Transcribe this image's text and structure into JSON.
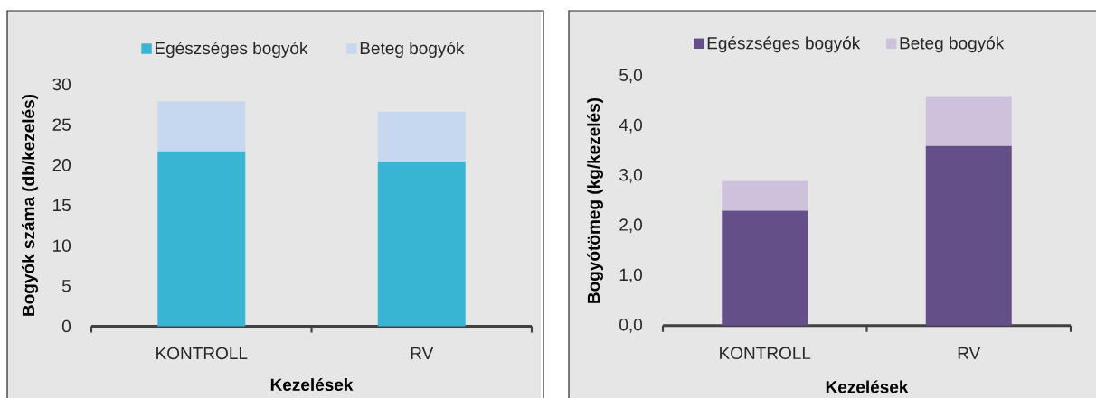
{
  "chart_data": [
    {
      "type": "bar",
      "stacked": true,
      "categories": [
        "KONTROLL",
        "RV"
      ],
      "series": [
        {
          "name": "Egészséges bogyók",
          "color": "#39b5d4",
          "values": [
            21.7,
            20.4
          ]
        },
        {
          "name": "Beteg bogyók",
          "color": "#c6d8ef",
          "values": [
            6.2,
            6.2
          ]
        }
      ],
      "xlabel": "Kezelések",
      "ylabel": "Bogyók száma (db/kezelés)",
      "ylim": [
        0,
        30
      ],
      "yticks": [
        0,
        5,
        10,
        15,
        20,
        25,
        30
      ],
      "legend": "top"
    },
    {
      "type": "bar",
      "stacked": true,
      "categories": [
        "KONTROLL",
        "RV"
      ],
      "series": [
        {
          "name": "Egészséges bogyók",
          "color": "#654f88",
          "values": [
            2.3,
            3.6
          ]
        },
        {
          "name": "Beteg bogyók",
          "color": "#cdc1dc",
          "values": [
            0.6,
            1.0
          ]
        }
      ],
      "xlabel": "Kezelések",
      "ylabel": "Bogyótömeg (kg/kezelés)",
      "ylim": [
        0,
        5
      ],
      "yticks": [
        {
          "value": 0,
          "label": "0,0"
        },
        {
          "value": 1,
          "label": "1,0"
        },
        {
          "value": 2,
          "label": "2,0"
        },
        {
          "value": 3,
          "label": "3,0"
        },
        {
          "value": 4,
          "label": "4,0"
        },
        {
          "value": 5,
          "label": "5,0"
        }
      ],
      "legend": "top"
    }
  ]
}
